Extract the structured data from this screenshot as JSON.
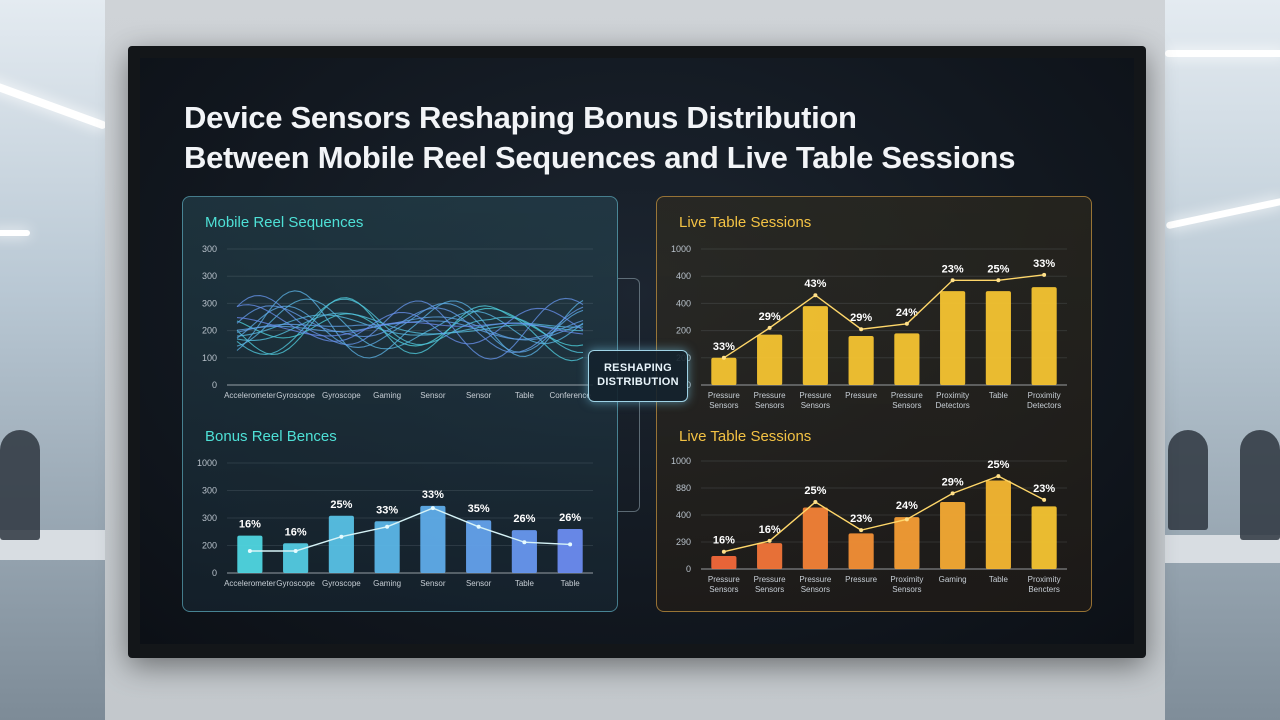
{
  "screen": {
    "title_line1": "Device Sensors Reshaping Bonus Distribution",
    "title_line2": "Between Mobile Reel Sequences and Live Table Sessions",
    "connector_line1": "RESHAPING",
    "connector_line2": "DISTRIBUTION"
  },
  "colors": {
    "teal": "#4fd6e0",
    "blue": "#6b8cf0",
    "yellow": "#f5c431",
    "orange": "#f2683a",
    "panel_left_title": "#4ee0d6",
    "panel_right_title": "#f3c244"
  },
  "chart_data": [
    {
      "type": "line",
      "title": "Mobile Reel Sequences",
      "y_ticks": [
        "300",
        "300",
        "300",
        "200",
        "100",
        "0"
      ],
      "categories": [
        "Accelerometer",
        "Gyroscope",
        "Gyroscope",
        "Gaming",
        "Sensor",
        "Sensor",
        "Table",
        "Conference"
      ],
      "note": "many overlapping wave lines; no series names printed"
    },
    {
      "type": "bar",
      "title": "Bonus Reel Bences",
      "y_ticks": [
        "1000",
        "300",
        "300",
        "200",
        "0"
      ],
      "ylim": [
        0,
        1000
      ],
      "categories": [
        "Accelerometer",
        "Gyroscope",
        "Gyroscope",
        "Gaming",
        "Sensor",
        "Sensor",
        "Table",
        "Table"
      ],
      "values": [
        340,
        270,
        520,
        470,
        610,
        480,
        390,
        400
      ],
      "labels": [
        "16%",
        "16%",
        "25%",
        "33%",
        "33%",
        "35%",
        "26%",
        "26%"
      ],
      "line_values": [
        200,
        200,
        330,
        420,
        590,
        420,
        280,
        260
      ]
    },
    {
      "type": "bar",
      "title": "Live Table Sessions",
      "y_ticks": [
        "1000",
        "400",
        "400",
        "200",
        "200",
        "0"
      ],
      "ylim": [
        0,
        1000
      ],
      "categories": [
        "Pressure Sensors",
        "Pressure Sensors",
        "Pressure Sensors",
        "Pressure",
        "Pressure Sensors",
        "Proximity Detectors",
        "Table",
        "Proximity Detectors"
      ],
      "values": [
        200,
        370,
        580,
        360,
        380,
        690,
        690,
        720
      ],
      "labels": [
        "33%",
        "29%",
        "43%",
        "29%",
        "24%",
        "23%",
        "25%",
        "33%"
      ],
      "line_values": [
        200,
        420,
        660,
        410,
        450,
        770,
        770,
        810
      ]
    },
    {
      "type": "bar",
      "title": "Live Table Sessions",
      "y_ticks": [
        "1000",
        "880",
        "400",
        "290",
        "0"
      ],
      "ylim": [
        0,
        1000
      ],
      "categories": [
        "Pressure Sensors",
        "Pressure Sensors",
        "Pressure Sensors",
        "Pressure",
        "Proximity Sensors",
        "Gaming",
        "Table",
        "Proximity Bencters"
      ],
      "values": [
        120,
        240,
        570,
        330,
        480,
        620,
        820,
        580
      ],
      "labels": [
        "16%",
        "16%",
        "25%",
        "23%",
        "24%",
        "29%",
        "25%",
        "23%"
      ],
      "line_values": [
        160,
        260,
        620,
        360,
        460,
        700,
        860,
        640
      ]
    }
  ]
}
